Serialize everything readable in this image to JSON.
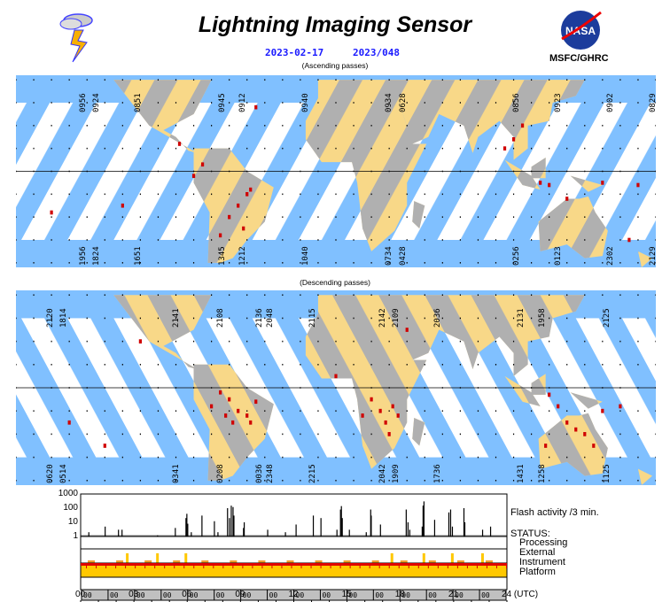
{
  "header": {
    "title": "Lightning Imaging Sensor",
    "date": "2023-02-17",
    "doy": "2023/048",
    "org": "MSFC/GHRC",
    "nasa_logo": "NASA"
  },
  "ascending": {
    "label": "(Ascending passes)",
    "top_times": [
      "0956",
      "0924",
      "0851",
      "0945",
      "0912",
      "0940",
      "0934",
      "0628",
      "0856",
      "0923",
      "0902",
      "0829"
    ],
    "bottom_times": [
      "1956",
      "1824",
      "1651",
      "1345",
      "1212",
      "1040",
      "0734",
      "0428",
      "0256",
      "0123",
      "2302",
      "2129"
    ],
    "flashes": [
      [
        -75,
        3
      ],
      [
        -80,
        -2
      ],
      [
        -50,
        -10
      ],
      [
        -55,
        -15
      ],
      [
        -60,
        -20
      ],
      [
        -48,
        -8
      ],
      [
        -65,
        -28
      ],
      [
        -120,
        -15
      ],
      [
        -160,
        -18
      ],
      [
        -45,
        28
      ],
      [
        95,
        10
      ],
      [
        100,
        14
      ],
      [
        105,
        20
      ],
      [
        115,
        -5
      ],
      [
        120,
        -6
      ],
      [
        130,
        -12
      ],
      [
        150,
        -5
      ],
      [
        170,
        -6
      ],
      [
        165,
        -30
      ],
      [
        -88,
        12
      ],
      [
        -52,
        -25
      ]
    ]
  },
  "descending": {
    "label": "(Descending passes)",
    "top_times": [
      "2120",
      "1814",
      "2141",
      "2108",
      "2136",
      "2048",
      "2115",
      "2142",
      "2109",
      "2036",
      "2131",
      "1958",
      "2125"
    ],
    "bottom_times": [
      "0620",
      "0514",
      "0341",
      "0208",
      "0036",
      "2348",
      "2215",
      "2042",
      "1909",
      "1736",
      "1431",
      "1258",
      "1125"
    ],
    "flashes": [
      [
        -65,
        -2
      ],
      [
        -60,
        -5
      ],
      [
        -70,
        -8
      ],
      [
        -55,
        -10
      ],
      [
        -50,
        -12
      ],
      [
        -58,
        -15
      ],
      [
        -62,
        -12
      ],
      [
        -48,
        -15
      ],
      [
        -45,
        -6
      ],
      [
        20,
        -5
      ],
      [
        25,
        -10
      ],
      [
        28,
        -15
      ],
      [
        30,
        -20
      ],
      [
        15,
        -12
      ],
      [
        32,
        -8
      ],
      [
        35,
        -12
      ],
      [
        120,
        -3
      ],
      [
        125,
        -8
      ],
      [
        130,
        -15
      ],
      [
        135,
        -18
      ],
      [
        140,
        -20
      ],
      [
        145,
        -25
      ],
      [
        118,
        -25
      ],
      [
        150,
        -10
      ],
      [
        160,
        -8
      ],
      [
        -150,
        -15
      ],
      [
        -130,
        -25
      ],
      [
        0,
        5
      ],
      [
        40,
        25
      ],
      [
        -110,
        20
      ]
    ]
  },
  "flash_chart": {
    "label": "Flash activity /3 min.",
    "yticks": [
      "1000",
      "100",
      "10",
      "1"
    ],
    "xticks": [
      "00",
      "03",
      "06",
      "09",
      "12",
      "15",
      "18",
      "21",
      "24 (UTC)"
    ],
    "chart_data": {
      "type": "bar",
      "xlabel": "UTC hour",
      "ylabel": "Flash activity /3 min.",
      "yscale": "log",
      "ylim": [
        1,
        1000
      ],
      "xlim": [
        0,
        24
      ],
      "x": [
        0.43,
        1.35,
        2.1,
        2.3,
        4.3,
        5.3,
        5.9,
        5.95,
        6.0,
        6.2,
        6.8,
        7.5,
        7.7,
        8.24,
        8.35,
        8.45,
        8.55,
        8.6,
        9.14,
        9.18,
        10.5,
        11.5,
        12.1,
        13.07,
        13.5,
        14.4,
        14.6,
        14.65,
        14.7,
        15.1,
        16.05,
        16.3,
        16.33,
        16.85,
        18.3,
        18.4,
        18.5,
        19.2,
        19.25,
        19.3,
        19.9,
        20.7,
        20.8,
        20.9,
        21.55,
        21.6,
        22.6,
        23.05
      ],
      "values": [
        2,
        5,
        3,
        3,
        1.2,
        4,
        20,
        40,
        8,
        2,
        30,
        12,
        2,
        100,
        20,
        150,
        120,
        30,
        4,
        10,
        3,
        2,
        7,
        30,
        20,
        3,
        80,
        140,
        20,
        3,
        2,
        80,
        30,
        7,
        80,
        10,
        3,
        5,
        150,
        300,
        15,
        50,
        80,
        5,
        100,
        10,
        3,
        5
      ]
    }
  },
  "status": {
    "title": "STATUS:",
    "rows": [
      "Processing",
      "External",
      "Instrument",
      "Platform"
    ],
    "time_marker": "00",
    "external_peaks": [
      2.6,
      4.3,
      5.9,
      17.5,
      19.3,
      20.9,
      22.6
    ]
  },
  "colors": {
    "ocean": "#80c0ff",
    "land": "#f8d888",
    "night": "#b0b0b0",
    "flash": "#d00000",
    "title_date": "#1a1aff"
  }
}
